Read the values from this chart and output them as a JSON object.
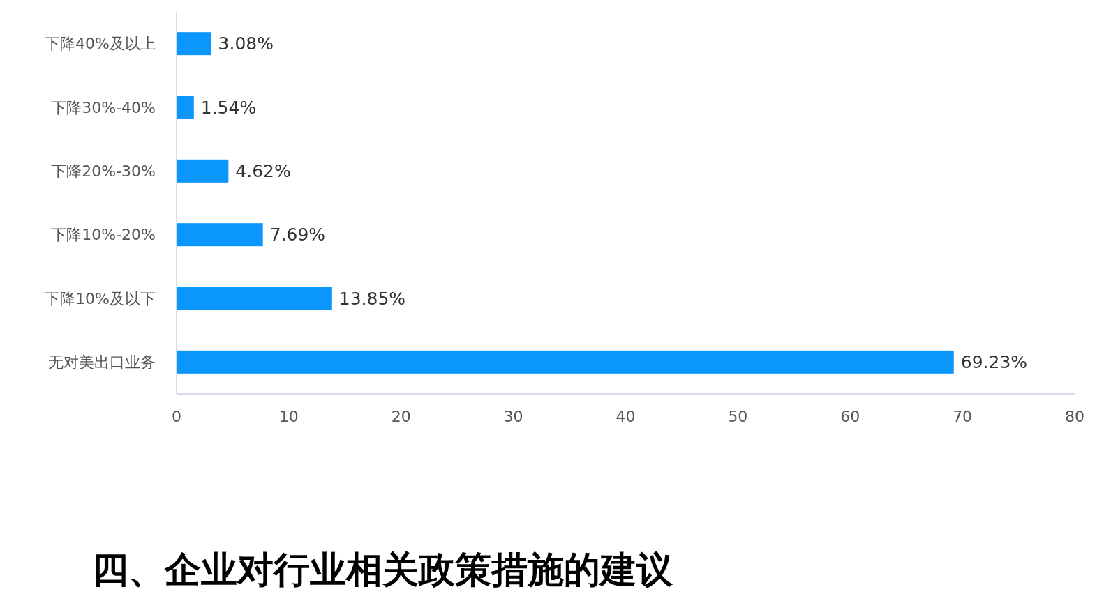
{
  "chart_data": {
    "type": "bar",
    "orientation": "horizontal",
    "categories": [
      "下降40%及以上",
      "下降30%-40%",
      "下降20%-30%",
      "下降10%-20%",
      "下降10%及以下",
      "无对美出口业务"
    ],
    "values": [
      3.08,
      1.54,
      4.62,
      7.69,
      13.85,
      69.23
    ],
    "value_labels": [
      "3.08%",
      "1.54%",
      "4.62%",
      "7.69%",
      "13.85%",
      "69.23%"
    ],
    "color": "#0a96fb",
    "xlim": [
      0,
      80
    ],
    "xticks": [
      0,
      10,
      20,
      30,
      40,
      50,
      60,
      70,
      80
    ],
    "grid": false,
    "annotations": [
      "四、企业对行业相关政策措施的建议"
    ]
  }
}
